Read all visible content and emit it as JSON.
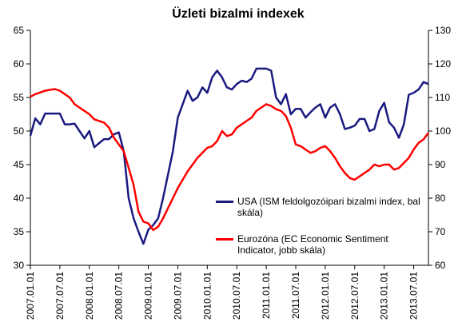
{
  "chart_data": {
    "type": "line",
    "title": "Üzleti bizalmi indexek",
    "categories": [
      "2007.01.01",
      null,
      null,
      null,
      null,
      null,
      "2007.07.01",
      null,
      null,
      null,
      null,
      null,
      "2008.01.01",
      null,
      null,
      null,
      null,
      null,
      "2008.07.01",
      null,
      null,
      null,
      null,
      null,
      "2009.01.01",
      null,
      null,
      null,
      null,
      null,
      "2009.07.01",
      null,
      null,
      null,
      null,
      null,
      "2010.01.01",
      null,
      null,
      null,
      null,
      null,
      "2010.07.01",
      null,
      null,
      null,
      null,
      null,
      "2011.01.01",
      null,
      null,
      null,
      null,
      null,
      "2011.07.01",
      null,
      null,
      null,
      null,
      null,
      "2012.01.01",
      null,
      null,
      null,
      null,
      null,
      "2012.07.01",
      null,
      null,
      null,
      null,
      null,
      "2013.01.01",
      null,
      null,
      null,
      null,
      null,
      "2013.07.01",
      null,
      null,
      null
    ],
    "series": [
      {
        "name": "USA (ISM feldolgozóipari bizalmi index, bal skála)",
        "color": "#1a1a80",
        "values": [
          49.3,
          51.9,
          51.0,
          52.6,
          52.6,
          52.6,
          52.6,
          51.0,
          51.0,
          51.1,
          50.0,
          48.9,
          50.0,
          47.6,
          48.2,
          48.8,
          48.8,
          49.5,
          49.8,
          47.0,
          40.0,
          37.0,
          35.0,
          33.2,
          35.3,
          36.0,
          37.0,
          40.0,
          43.5,
          47.0,
          52.0,
          54.0,
          56.0,
          54.5,
          55.0,
          56.5,
          55.7,
          58.0,
          59.0,
          58.0,
          56.5,
          56.2,
          57.0,
          57.5,
          57.3,
          57.8,
          59.3,
          59.3,
          59.3,
          59.0,
          55.0,
          54.0,
          55.5,
          52.5,
          53.3,
          53.3,
          52.0,
          52.8,
          53.5,
          54.0,
          52.0,
          53.5,
          54.0,
          52.5,
          50.3,
          50.5,
          50.8,
          51.8,
          51.8,
          50.0,
          50.3,
          53.0,
          54.2,
          51.3,
          50.5,
          49.0,
          51.0,
          55.4,
          55.7,
          56.2,
          57.3,
          57.0
        ]
      },
      {
        "name": "Eurozóna (EC Economic Sentiment Indicator, jobb skála)",
        "color": "#ff0000",
        "axis": "y2",
        "values": [
          110.2,
          111,
          111.5,
          112,
          112.3,
          112.5,
          112,
          111,
          110,
          108,
          107,
          106,
          105,
          103.5,
          103,
          102.5,
          101,
          98,
          96,
          94,
          89,
          84,
          76,
          73,
          72.5,
          70.5,
          71.5,
          74,
          77,
          80,
          83,
          85.5,
          88,
          90,
          92,
          93.5,
          95,
          95.5,
          97,
          100,
          98.5,
          99,
          101,
          102,
          103,
          104,
          106,
          107,
          108,
          107.5,
          106.5,
          106,
          104.5,
          101,
          96,
          95.5,
          94.5,
          93.5,
          94,
          95,
          95.5,
          94,
          92,
          89.5,
          87.5,
          86,
          85.5,
          86.5,
          87.5,
          88.5,
          90,
          89.5,
          90,
          90,
          88.5,
          89,
          90.5,
          92,
          94.5,
          96.5,
          97.5,
          99.5
        ]
      }
    ],
    "ylim": [
      30,
      65
    ],
    "yticks": [
      30,
      35,
      40,
      45,
      50,
      55,
      60,
      65
    ],
    "y2lim": [
      60,
      130
    ],
    "y2ticks": [
      60,
      70,
      80,
      90,
      100,
      110,
      120,
      130
    ],
    "grid": false
  }
}
